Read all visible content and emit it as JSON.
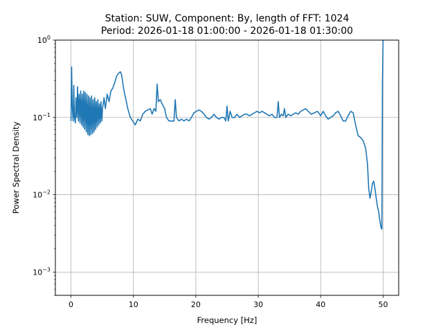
{
  "chart_data": {
    "type": "line",
    "title_lines": [
      "Station: SUW, Component: By, length of FFT: 1024",
      "Period: 2026-01-18 01:00:00 - 2026-01-18 01:30:00"
    ],
    "xlabel": "Frequency [Hz]",
    "ylabel": "Power Spectral Density",
    "xlim": [
      -2.5,
      52.5
    ],
    "ylim": [
      0.0005,
      1
    ],
    "yscale": "log",
    "grid": true,
    "x_ticks": [
      0,
      10,
      20,
      30,
      40,
      50
    ],
    "x_tick_labels": [
      "0",
      "10",
      "20",
      "30",
      "40",
      "50"
    ],
    "y_ticks": [
      0.001,
      0.01,
      0.1,
      1
    ],
    "y_tick_labels": [
      {
        "base": "10",
        "exp": "−3"
      },
      {
        "base": "10",
        "exp": "−2"
      },
      {
        "base": "10",
        "exp": "−1"
      },
      {
        "base": "10",
        "exp": "0"
      }
    ],
    "series": [
      {
        "color": "#1f77b4",
        "points": [
          [
            0.0,
            0.09
          ],
          [
            0.1,
            0.45
          ],
          [
            0.2,
            0.14
          ],
          [
            0.35,
            0.09
          ],
          [
            0.45,
            0.26
          ],
          [
            0.55,
            0.1
          ],
          [
            0.7,
            0.085
          ],
          [
            0.8,
            0.18
          ],
          [
            0.95,
            0.1
          ],
          [
            1.05,
            0.25
          ],
          [
            1.2,
            0.09
          ],
          [
            1.3,
            0.2
          ],
          [
            1.45,
            0.085
          ],
          [
            1.55,
            0.22
          ],
          [
            1.7,
            0.08
          ],
          [
            1.8,
            0.2
          ],
          [
            1.95,
            0.075
          ],
          [
            2.05,
            0.22
          ],
          [
            2.2,
            0.07
          ],
          [
            2.3,
            0.21
          ],
          [
            2.45,
            0.065
          ],
          [
            2.55,
            0.2
          ],
          [
            2.7,
            0.06
          ],
          [
            2.8,
            0.19
          ],
          [
            2.95,
            0.058
          ],
          [
            3.05,
            0.18
          ],
          [
            3.2,
            0.06
          ],
          [
            3.3,
            0.19
          ],
          [
            3.45,
            0.062
          ],
          [
            3.55,
            0.17
          ],
          [
            3.7,
            0.065
          ],
          [
            3.8,
            0.18
          ],
          [
            3.95,
            0.07
          ],
          [
            4.05,
            0.16
          ],
          [
            4.2,
            0.075
          ],
          [
            4.3,
            0.17
          ],
          [
            4.45,
            0.08
          ],
          [
            4.55,
            0.15
          ],
          [
            4.7,
            0.085
          ],
          [
            4.8,
            0.16
          ],
          [
            4.95,
            0.09
          ],
          [
            5.05,
            0.13
          ],
          [
            5.3,
            0.18
          ],
          [
            5.5,
            0.13
          ],
          [
            5.8,
            0.2
          ],
          [
            6.1,
            0.16
          ],
          [
            6.4,
            0.22
          ],
          [
            6.7,
            0.24
          ],
          [
            7.0,
            0.28
          ],
          [
            7.3,
            0.34
          ],
          [
            7.6,
            0.37
          ],
          [
            7.9,
            0.39
          ],
          [
            8.1,
            0.36
          ],
          [
            8.3,
            0.28
          ],
          [
            8.5,
            0.22
          ],
          [
            8.8,
            0.17
          ],
          [
            9.1,
            0.13
          ],
          [
            9.5,
            0.1
          ],
          [
            9.9,
            0.09
          ],
          [
            10.3,
            0.08
          ],
          [
            10.7,
            0.095
          ],
          [
            11.1,
            0.09
          ],
          [
            11.5,
            0.11
          ],
          [
            11.9,
            0.12
          ],
          [
            12.3,
            0.125
          ],
          [
            12.7,
            0.13
          ],
          [
            13.0,
            0.11
          ],
          [
            13.3,
            0.13
          ],
          [
            13.6,
            0.12
          ],
          [
            13.8,
            0.27
          ],
          [
            14.0,
            0.16
          ],
          [
            14.3,
            0.17
          ],
          [
            14.6,
            0.15
          ],
          [
            15.0,
            0.13
          ],
          [
            15.3,
            0.1
          ],
          [
            15.7,
            0.09
          ],
          [
            16.2,
            0.09
          ],
          [
            16.5,
            0.09
          ],
          [
            16.7,
            0.17
          ],
          [
            16.9,
            0.1
          ],
          [
            17.3,
            0.09
          ],
          [
            17.7,
            0.095
          ],
          [
            18.1,
            0.09
          ],
          [
            18.5,
            0.095
          ],
          [
            18.9,
            0.09
          ],
          [
            19.3,
            0.1
          ],
          [
            19.7,
            0.115
          ],
          [
            20.1,
            0.12
          ],
          [
            20.5,
            0.125
          ],
          [
            20.9,
            0.12
          ],
          [
            21.3,
            0.11
          ],
          [
            21.7,
            0.1
          ],
          [
            22.1,
            0.095
          ],
          [
            22.5,
            0.1
          ],
          [
            22.9,
            0.11
          ],
          [
            23.3,
            0.1
          ],
          [
            23.7,
            0.095
          ],
          [
            24.1,
            0.1
          ],
          [
            24.5,
            0.1
          ],
          [
            24.8,
            0.09
          ],
          [
            25.0,
            0.14
          ],
          [
            25.2,
            0.09
          ],
          [
            25.5,
            0.12
          ],
          [
            25.8,
            0.1
          ],
          [
            26.2,
            0.1
          ],
          [
            26.6,
            0.11
          ],
          [
            27.0,
            0.1
          ],
          [
            27.4,
            0.105
          ],
          [
            27.8,
            0.11
          ],
          [
            28.2,
            0.11
          ],
          [
            28.6,
            0.105
          ],
          [
            29.0,
            0.11
          ],
          [
            29.4,
            0.115
          ],
          [
            29.8,
            0.12
          ],
          [
            30.2,
            0.115
          ],
          [
            30.6,
            0.12
          ],
          [
            31.0,
            0.115
          ],
          [
            31.4,
            0.11
          ],
          [
            31.8,
            0.105
          ],
          [
            32.2,
            0.11
          ],
          [
            32.6,
            0.1
          ],
          [
            33.0,
            0.1
          ],
          [
            33.2,
            0.16
          ],
          [
            33.4,
            0.1
          ],
          [
            33.7,
            0.11
          ],
          [
            34.0,
            0.105
          ],
          [
            34.2,
            0.13
          ],
          [
            34.4,
            0.1
          ],
          [
            34.8,
            0.11
          ],
          [
            35.2,
            0.105
          ],
          [
            35.6,
            0.11
          ],
          [
            36.0,
            0.115
          ],
          [
            36.4,
            0.11
          ],
          [
            36.8,
            0.12
          ],
          [
            37.2,
            0.125
          ],
          [
            37.6,
            0.13
          ],
          [
            38.0,
            0.12
          ],
          [
            38.5,
            0.11
          ],
          [
            39.0,
            0.115
          ],
          [
            39.5,
            0.12
          ],
          [
            40.0,
            0.105
          ],
          [
            40.4,
            0.12
          ],
          [
            40.8,
            0.105
          ],
          [
            41.2,
            0.095
          ],
          [
            41.6,
            0.1
          ],
          [
            42.0,
            0.105
          ],
          [
            42.4,
            0.115
          ],
          [
            42.8,
            0.12
          ],
          [
            43.2,
            0.105
          ],
          [
            43.6,
            0.09
          ],
          [
            44.0,
            0.09
          ],
          [
            44.4,
            0.105
          ],
          [
            44.8,
            0.12
          ],
          [
            45.2,
            0.115
          ],
          [
            45.6,
            0.08
          ],
          [
            46.0,
            0.058
          ],
          [
            46.4,
            0.055
          ],
          [
            46.8,
            0.05
          ],
          [
            47.2,
            0.04
          ],
          [
            47.5,
            0.025
          ],
          [
            47.7,
            0.012
          ],
          [
            47.9,
            0.009
          ],
          [
            48.1,
            0.011
          ],
          [
            48.3,
            0.014
          ],
          [
            48.5,
            0.015
          ],
          [
            48.7,
            0.012
          ],
          [
            48.9,
            0.009
          ],
          [
            49.1,
            0.007
          ],
          [
            49.3,
            0.006
          ],
          [
            49.5,
            0.0045
          ],
          [
            49.7,
            0.0037
          ],
          [
            49.8,
            0.0036
          ],
          [
            49.9,
            0.3
          ],
          [
            50.0,
            1.05
          ]
        ]
      }
    ]
  }
}
